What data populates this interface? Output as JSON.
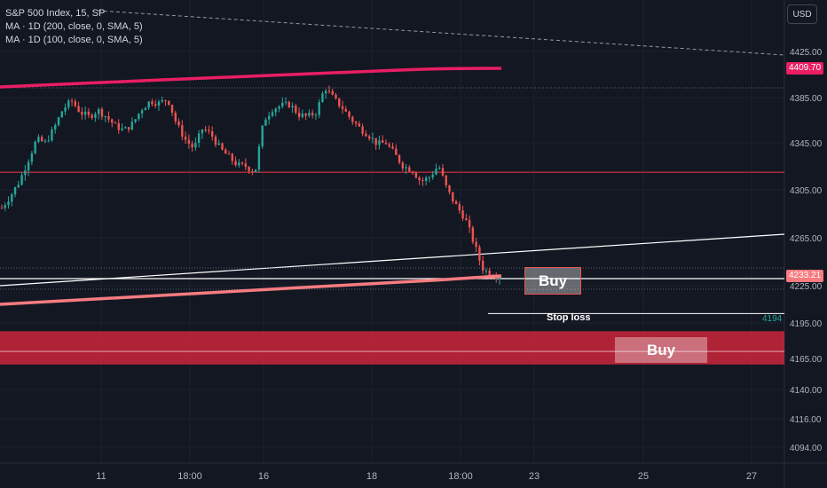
{
  "legend": {
    "symbol": "S&P 500 Index, 15, SP",
    "ma200": "MA · 1D (200, close, 0, SMA, 5)",
    "ma100": "MA · 1D (100, close, 0, SMA, 5)"
  },
  "currency_button": "USD",
  "colors": {
    "background": "#131722",
    "up": "#26a69a",
    "down": "#ef5350",
    "ma200": "#e91e63",
    "ma100": "#f77c80",
    "resistance": "#f23645",
    "zone": "#c2253a",
    "grid": "#1e222d"
  },
  "annotations": {
    "buy_upper": "Buy",
    "buy_lower": "Buy",
    "stop_loss": "Stop loss",
    "stop_loss_value": "4194"
  },
  "chart_data": {
    "type": "line",
    "title": "S&P 500 Index, 15, SP",
    "x_ticks": [
      "11",
      "18:00",
      "16",
      "18",
      "18:00",
      "23",
      "25",
      "27"
    ],
    "y_ticks": [
      4425.0,
      4385.0,
      4345.0,
      4305.0,
      4265.0,
      4225.0,
      4195.0,
      4165.0,
      4140.0,
      4116.0,
      4094.0
    ],
    "y_tick_labels": [
      "4425.00",
      "4385.00",
      "4345.00",
      "4305.00",
      "4265.00",
      "4225.00",
      "4195.00",
      "4165.00",
      "4140.00",
      "4116.00",
      "4094.00"
    ],
    "price_labels": {
      "ma200_value": "4409.70",
      "last_price": "4233.21"
    },
    "price_path": [
      4290,
      4300,
      4312,
      4330,
      4348,
      4345,
      4358,
      4375,
      4382,
      4372,
      4368,
      4374,
      4368,
      4360,
      4356,
      4362,
      4375,
      4382,
      4380,
      4384,
      4362,
      4348,
      4340,
      4358,
      4352,
      4340,
      4333,
      4326,
      4325,
      4320,
      4365,
      4375,
      4378,
      4379,
      4370,
      4368,
      4372,
      4394,
      4384,
      4376,
      4366,
      4358,
      4352,
      4344,
      4345,
      4335,
      4325,
      4322,
      4312,
      4316,
      4326,
      4305,
      4292,
      4282,
      4262,
      4240,
      4234,
      4233.21
    ],
    "resistance_level": 4320,
    "support_zone": [
      4163,
      4185
    ],
    "stop_loss_level": 4194,
    "legend_position": "top-left"
  }
}
